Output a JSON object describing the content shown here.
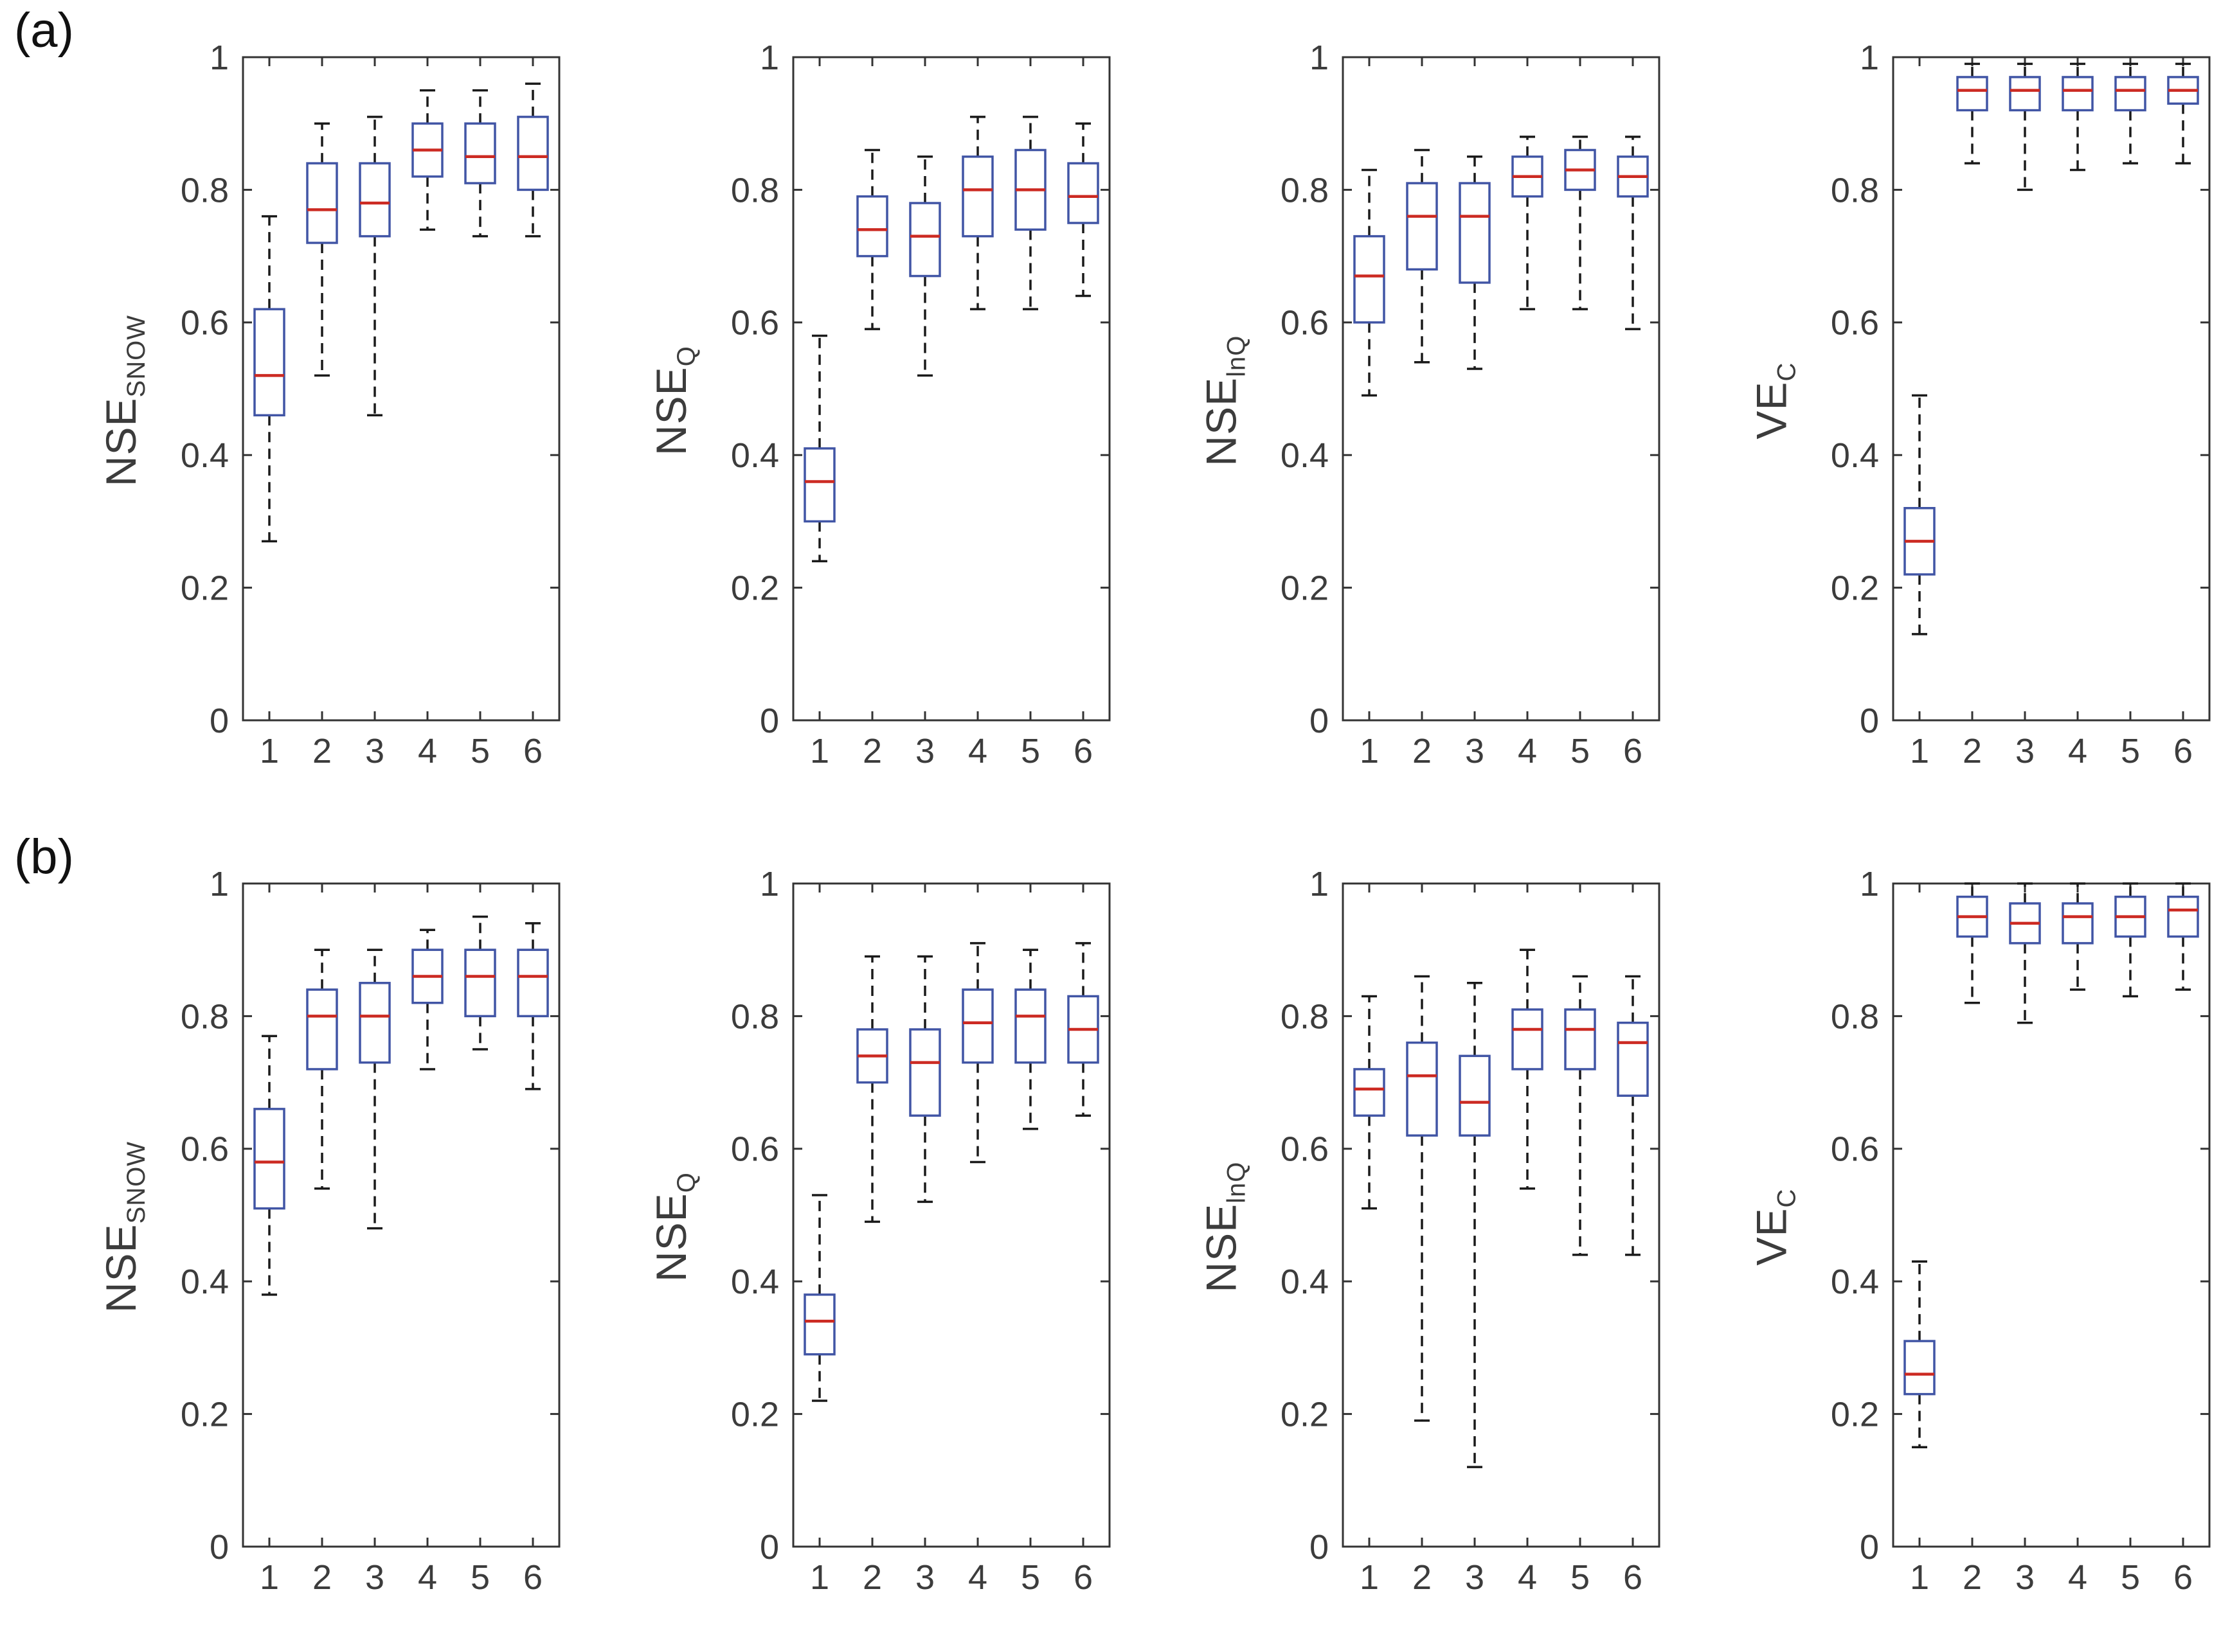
{
  "colors": {
    "box": "#4155a5",
    "median": "#cc2a22",
    "whisker": "#1a1a1a",
    "axis": "#333333",
    "text": "#3c3c3c"
  },
  "figure": {
    "rows": [
      {
        "label": "(a)"
      },
      {
        "label": "(b)"
      }
    ]
  },
  "chart_data": [
    {
      "type": "boxplot",
      "row": "(a)",
      "ylabel": "NSE",
      "ylabel_sub": "SNOW",
      "categories": [
        "1",
        "2",
        "3",
        "4",
        "5",
        "6"
      ],
      "ylim": [
        0,
        1
      ],
      "yticks": [
        0,
        0.2,
        0.4,
        0.6,
        0.8,
        1
      ],
      "ytick_labels": [
        "0",
        "0.2",
        "0.4",
        "0.6",
        "0.8",
        "1"
      ],
      "boxes": [
        {
          "whisker_low": 0.27,
          "q1": 0.46,
          "median": 0.52,
          "q3": 0.62,
          "whisker_high": 0.76
        },
        {
          "whisker_low": 0.52,
          "q1": 0.72,
          "median": 0.77,
          "q3": 0.84,
          "whisker_high": 0.9
        },
        {
          "whisker_low": 0.46,
          "q1": 0.73,
          "median": 0.78,
          "q3": 0.84,
          "whisker_high": 0.91
        },
        {
          "whisker_low": 0.74,
          "q1": 0.82,
          "median": 0.86,
          "q3": 0.9,
          "whisker_high": 0.95
        },
        {
          "whisker_low": 0.73,
          "q1": 0.81,
          "median": 0.85,
          "q3": 0.9,
          "whisker_high": 0.95
        },
        {
          "whisker_low": 0.73,
          "q1": 0.8,
          "median": 0.85,
          "q3": 0.91,
          "whisker_high": 0.96
        }
      ]
    },
    {
      "type": "boxplot",
      "row": "(a)",
      "ylabel": "NSE",
      "ylabel_sub": "Q",
      "categories": [
        "1",
        "2",
        "3",
        "4",
        "5",
        "6"
      ],
      "ylim": [
        0,
        1
      ],
      "yticks": [
        0,
        0.2,
        0.4,
        0.6,
        0.8,
        1
      ],
      "ytick_labels": [
        "0",
        "0.2",
        "0.4",
        "0.6",
        "0.8",
        "1"
      ],
      "boxes": [
        {
          "whisker_low": 0.24,
          "q1": 0.3,
          "median": 0.36,
          "q3": 0.41,
          "whisker_high": 0.58
        },
        {
          "whisker_low": 0.59,
          "q1": 0.7,
          "median": 0.74,
          "q3": 0.79,
          "whisker_high": 0.86
        },
        {
          "whisker_low": 0.52,
          "q1": 0.67,
          "median": 0.73,
          "q3": 0.78,
          "whisker_high": 0.85
        },
        {
          "whisker_low": 0.62,
          "q1": 0.73,
          "median": 0.8,
          "q3": 0.85,
          "whisker_high": 0.91
        },
        {
          "whisker_low": 0.62,
          "q1": 0.74,
          "median": 0.8,
          "q3": 0.86,
          "whisker_high": 0.91
        },
        {
          "whisker_low": 0.64,
          "q1": 0.75,
          "median": 0.79,
          "q3": 0.84,
          "whisker_high": 0.9
        }
      ]
    },
    {
      "type": "boxplot",
      "row": "(a)",
      "ylabel": "NSE",
      "ylabel_sub": "lnQ",
      "categories": [
        "1",
        "2",
        "3",
        "4",
        "5",
        "6"
      ],
      "ylim": [
        0,
        1
      ],
      "yticks": [
        0,
        0.2,
        0.4,
        0.6,
        0.8,
        1
      ],
      "ytick_labels": [
        "0",
        "0.2",
        "0.4",
        "0.6",
        "0.8",
        "1"
      ],
      "boxes": [
        {
          "whisker_low": 0.49,
          "q1": 0.6,
          "median": 0.67,
          "q3": 0.73,
          "whisker_high": 0.83
        },
        {
          "whisker_low": 0.54,
          "q1": 0.68,
          "median": 0.76,
          "q3": 0.81,
          "whisker_high": 0.86
        },
        {
          "whisker_low": 0.53,
          "q1": 0.66,
          "median": 0.76,
          "q3": 0.81,
          "whisker_high": 0.85
        },
        {
          "whisker_low": 0.62,
          "q1": 0.79,
          "median": 0.82,
          "q3": 0.85,
          "whisker_high": 0.88
        },
        {
          "whisker_low": 0.62,
          "q1": 0.8,
          "median": 0.83,
          "q3": 0.86,
          "whisker_high": 0.88
        },
        {
          "whisker_low": 0.59,
          "q1": 0.79,
          "median": 0.82,
          "q3": 0.85,
          "whisker_high": 0.88
        }
      ]
    },
    {
      "type": "boxplot",
      "row": "(a)",
      "ylabel": "VE",
      "ylabel_sub": "C",
      "categories": [
        "1",
        "2",
        "3",
        "4",
        "5",
        "6"
      ],
      "ylim": [
        0,
        1
      ],
      "yticks": [
        0,
        0.2,
        0.4,
        0.6,
        0.8,
        1
      ],
      "ytick_labels": [
        "0",
        "0.2",
        "0.4",
        "0.6",
        "0.8",
        "1"
      ],
      "boxes": [
        {
          "whisker_low": 0.13,
          "q1": 0.22,
          "median": 0.27,
          "q3": 0.32,
          "whisker_high": 0.49
        },
        {
          "whisker_low": 0.84,
          "q1": 0.92,
          "median": 0.95,
          "q3": 0.97,
          "whisker_high": 0.99
        },
        {
          "whisker_low": 0.8,
          "q1": 0.92,
          "median": 0.95,
          "q3": 0.97,
          "whisker_high": 0.99
        },
        {
          "whisker_low": 0.83,
          "q1": 0.92,
          "median": 0.95,
          "q3": 0.97,
          "whisker_high": 0.99
        },
        {
          "whisker_low": 0.84,
          "q1": 0.92,
          "median": 0.95,
          "q3": 0.97,
          "whisker_high": 0.99
        },
        {
          "whisker_low": 0.84,
          "q1": 0.93,
          "median": 0.95,
          "q3": 0.97,
          "whisker_high": 0.99
        }
      ]
    },
    {
      "type": "boxplot",
      "row": "(b)",
      "ylabel": "NSE",
      "ylabel_sub": "SNOW",
      "categories": [
        "1",
        "2",
        "3",
        "4",
        "5",
        "6"
      ],
      "ylim": [
        0,
        1
      ],
      "yticks": [
        0,
        0.2,
        0.4,
        0.6,
        0.8,
        1
      ],
      "ytick_labels": [
        "0",
        "0.2",
        "0.4",
        "0.6",
        "0.8",
        "1"
      ],
      "boxes": [
        {
          "whisker_low": 0.38,
          "q1": 0.51,
          "median": 0.58,
          "q3": 0.66,
          "whisker_high": 0.77
        },
        {
          "whisker_low": 0.54,
          "q1": 0.72,
          "median": 0.8,
          "q3": 0.84,
          "whisker_high": 0.9
        },
        {
          "whisker_low": 0.48,
          "q1": 0.73,
          "median": 0.8,
          "q3": 0.85,
          "whisker_high": 0.9
        },
        {
          "whisker_low": 0.72,
          "q1": 0.82,
          "median": 0.86,
          "q3": 0.9,
          "whisker_high": 0.93
        },
        {
          "whisker_low": 0.75,
          "q1": 0.8,
          "median": 0.86,
          "q3": 0.9,
          "whisker_high": 0.95
        },
        {
          "whisker_low": 0.69,
          "q1": 0.8,
          "median": 0.86,
          "q3": 0.9,
          "whisker_high": 0.94
        }
      ]
    },
    {
      "type": "boxplot",
      "row": "(b)",
      "ylabel": "NSE",
      "ylabel_sub": "Q",
      "categories": [
        "1",
        "2",
        "3",
        "4",
        "5",
        "6"
      ],
      "ylim": [
        0,
        1
      ],
      "yticks": [
        0,
        0.2,
        0.4,
        0.6,
        0.8,
        1
      ],
      "ytick_labels": [
        "0",
        "0.2",
        "0.4",
        "0.6",
        "0.8",
        "1"
      ],
      "boxes": [
        {
          "whisker_low": 0.22,
          "q1": 0.29,
          "median": 0.34,
          "q3": 0.38,
          "whisker_high": 0.53
        },
        {
          "whisker_low": 0.49,
          "q1": 0.7,
          "median": 0.74,
          "q3": 0.78,
          "whisker_high": 0.89
        },
        {
          "whisker_low": 0.52,
          "q1": 0.65,
          "median": 0.73,
          "q3": 0.78,
          "whisker_high": 0.89
        },
        {
          "whisker_low": 0.58,
          "q1": 0.73,
          "median": 0.79,
          "q3": 0.84,
          "whisker_high": 0.91
        },
        {
          "whisker_low": 0.63,
          "q1": 0.73,
          "median": 0.8,
          "q3": 0.84,
          "whisker_high": 0.9
        },
        {
          "whisker_low": 0.65,
          "q1": 0.73,
          "median": 0.78,
          "q3": 0.83,
          "whisker_high": 0.91
        }
      ]
    },
    {
      "type": "boxplot",
      "row": "(b)",
      "ylabel": "NSE",
      "ylabel_sub": "lnQ",
      "categories": [
        "1",
        "2",
        "3",
        "4",
        "5",
        "6"
      ],
      "ylim": [
        0,
        1
      ],
      "yticks": [
        0,
        0.2,
        0.4,
        0.6,
        0.8,
        1
      ],
      "ytick_labels": [
        "0",
        "0.2",
        "0.4",
        "0.6",
        "0.8",
        "1"
      ],
      "boxes": [
        {
          "whisker_low": 0.51,
          "q1": 0.65,
          "median": 0.69,
          "q3": 0.72,
          "whisker_high": 0.83
        },
        {
          "whisker_low": 0.19,
          "q1": 0.62,
          "median": 0.71,
          "q3": 0.76,
          "whisker_high": 0.86
        },
        {
          "whisker_low": 0.12,
          "q1": 0.62,
          "median": 0.67,
          "q3": 0.74,
          "whisker_high": 0.85
        },
        {
          "whisker_low": 0.54,
          "q1": 0.72,
          "median": 0.78,
          "q3": 0.81,
          "whisker_high": 0.9
        },
        {
          "whisker_low": 0.44,
          "q1": 0.72,
          "median": 0.78,
          "q3": 0.81,
          "whisker_high": 0.86
        },
        {
          "whisker_low": 0.44,
          "q1": 0.68,
          "median": 0.76,
          "q3": 0.79,
          "whisker_high": 0.86
        }
      ]
    },
    {
      "type": "boxplot",
      "row": "(b)",
      "ylabel": "VE",
      "ylabel_sub": "C",
      "categories": [
        "1",
        "2",
        "3",
        "4",
        "5",
        "6"
      ],
      "ylim": [
        0,
        1
      ],
      "yticks": [
        0,
        0.2,
        0.4,
        0.6,
        0.8,
        1
      ],
      "ytick_labels": [
        "0",
        "0.2",
        "0.4",
        "0.6",
        "0.8",
        "1"
      ],
      "boxes": [
        {
          "whisker_low": 0.15,
          "q1": 0.23,
          "median": 0.26,
          "q3": 0.31,
          "whisker_high": 0.43
        },
        {
          "whisker_low": 0.82,
          "q1": 0.92,
          "median": 0.95,
          "q3": 0.98,
          "whisker_high": 1.0
        },
        {
          "whisker_low": 0.79,
          "q1": 0.91,
          "median": 0.94,
          "q3": 0.97,
          "whisker_high": 1.0
        },
        {
          "whisker_low": 0.84,
          "q1": 0.91,
          "median": 0.95,
          "q3": 0.97,
          "whisker_high": 1.0
        },
        {
          "whisker_low": 0.83,
          "q1": 0.92,
          "median": 0.95,
          "q3": 0.98,
          "whisker_high": 1.0
        },
        {
          "whisker_low": 0.84,
          "q1": 0.92,
          "median": 0.96,
          "q3": 0.98,
          "whisker_high": 1.0
        }
      ]
    }
  ]
}
